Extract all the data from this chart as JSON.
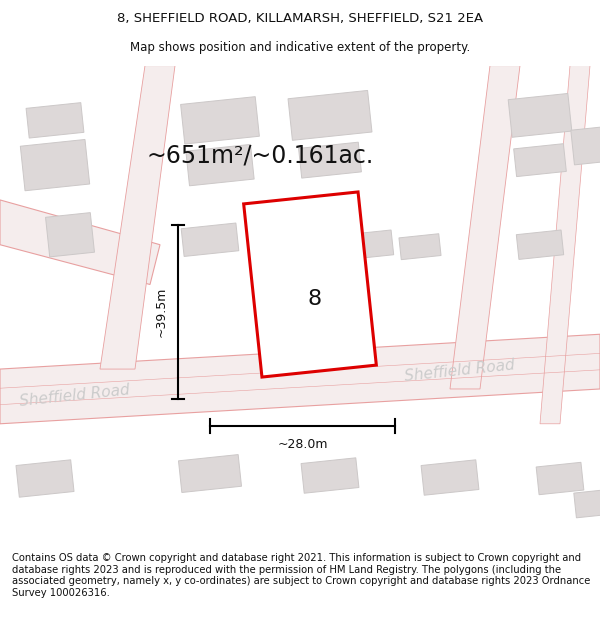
{
  "title_line1": "8, SHEFFIELD ROAD, KILLAMARSH, SHEFFIELD, S21 2EA",
  "title_line2": "Map shows position and indicative extent of the property.",
  "area_label": "~651m²/~0.161ac.",
  "property_number": "8",
  "dim_width": "~28.0m",
  "dim_height": "~39.5m",
  "road_label_left": "Sheffield Road",
  "road_label_right": "Sheffield Road",
  "footer_text": "Contains OS data © Crown copyright and database right 2021. This information is subject to Crown copyright and database rights 2023 and is reproduced with the permission of HM Land Registry. The polygons (including the associated geometry, namely x, y co-ordinates) are subject to Crown copyright and database rights 2023 Ordnance Survey 100026316.",
  "bg_color": "#ffffff",
  "map_bg": "#faf5f5",
  "road_fill": "#f5eded",
  "road_edge": "#e8a0a0",
  "road_line": "#e8a0a0",
  "building_fill": "#ddd8d8",
  "building_edge": "#ccc8c8",
  "prop_fill": "#ffffff",
  "prop_edge": "#dd0000",
  "title_fontsize": 9.5,
  "subtitle_fontsize": 8.5,
  "area_fontsize": 17,
  "label_fontsize": 9,
  "road_fontsize": 11,
  "footer_fontsize": 7.2,
  "prop_number_fontsize": 16
}
